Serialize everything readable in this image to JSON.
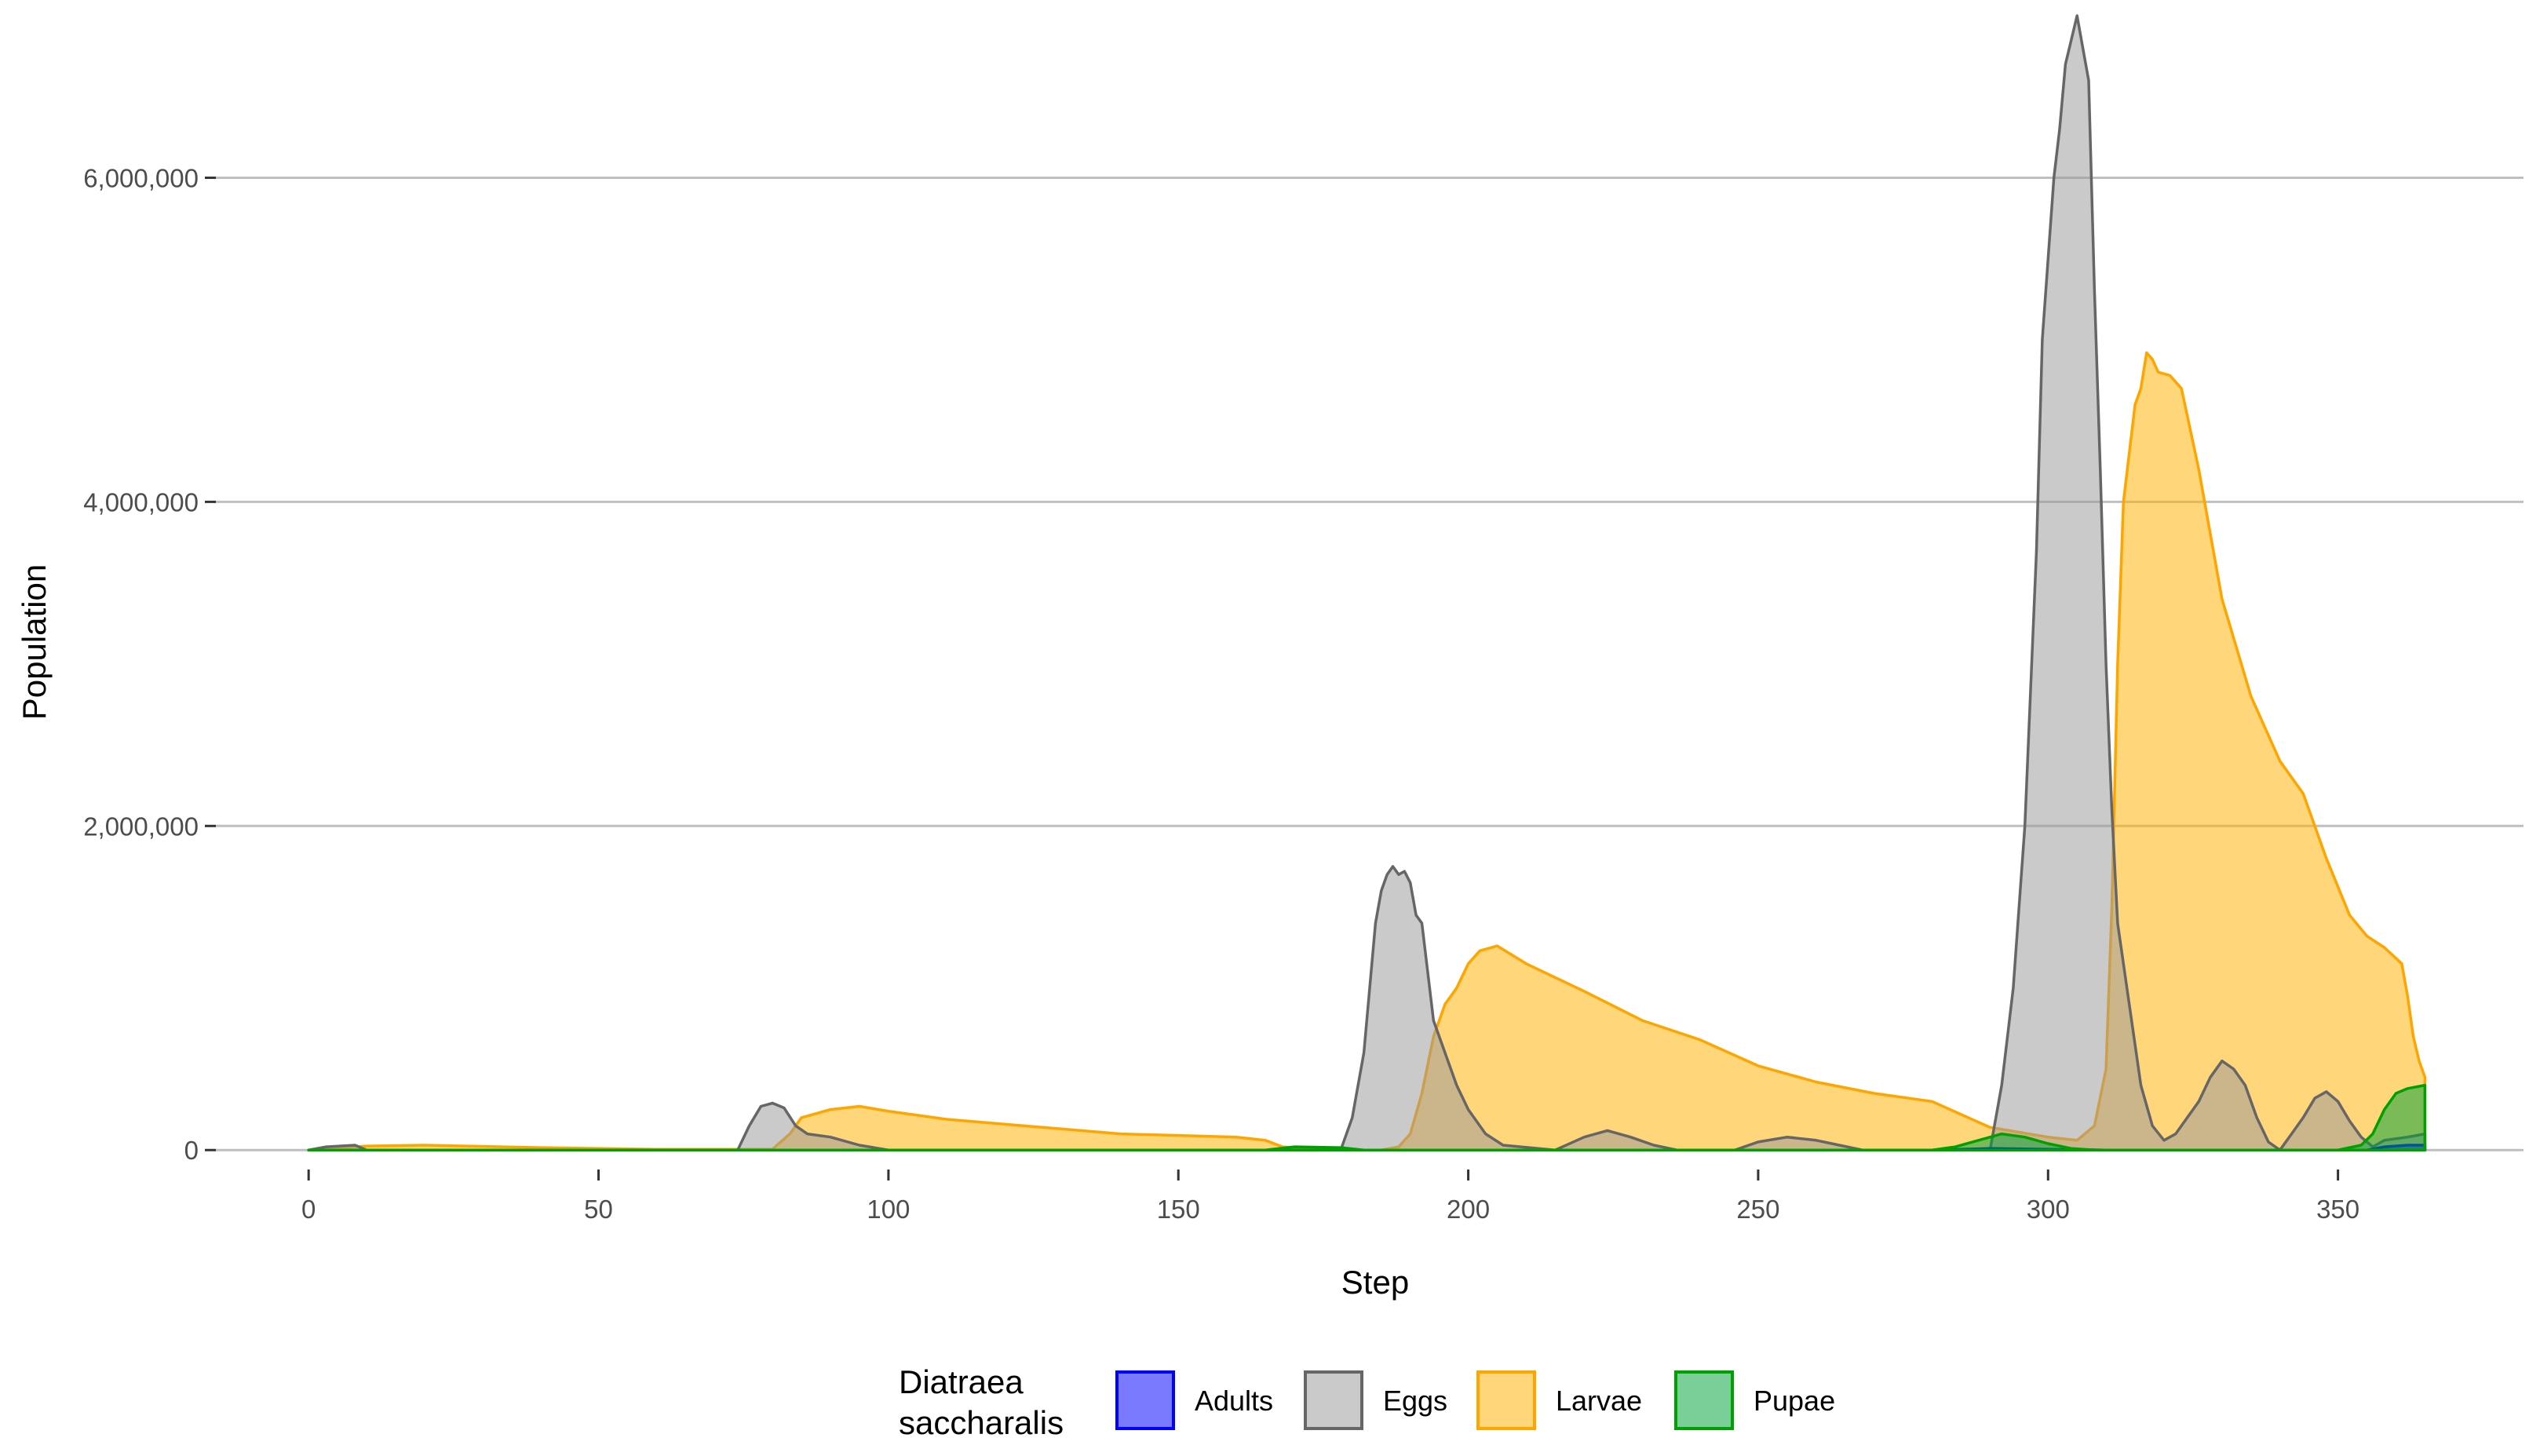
{
  "chart_data": {
    "type": "area",
    "title": "",
    "xlabel": "Step",
    "ylabel": "Population",
    "xlim": [
      -16,
      382
    ],
    "ylim": [
      -120000,
      7000000
    ],
    "x_ticks": [
      0,
      50,
      100,
      150,
      200,
      250,
      300,
      350
    ],
    "x_tick_labels": [
      "0",
      "50",
      "100",
      "150",
      "200",
      "250",
      "300",
      "350"
    ],
    "y_ticks": [
      0,
      2000000,
      4000000,
      6000000
    ],
    "y_tick_labels": [
      "0",
      "2,000,000",
      "4,000,000",
      "6,000,000"
    ],
    "grid": "horizontal major lines",
    "legend": {
      "title_lines": [
        "Diatraea",
        "saccharalis"
      ],
      "position": "bottom"
    },
    "series": [
      {
        "name": "Larvae",
        "fill": "#FFB000",
        "stroke": "#FFA500",
        "points": [
          [
            0,
            0
          ],
          [
            10,
            25000
          ],
          [
            20,
            30000
          ],
          [
            40,
            15000
          ],
          [
            60,
            5000
          ],
          [
            80,
            5000
          ],
          [
            83,
            100000
          ],
          [
            85,
            200000
          ],
          [
            90,
            250000
          ],
          [
            95,
            270000
          ],
          [
            100,
            240000
          ],
          [
            110,
            190000
          ],
          [
            120,
            160000
          ],
          [
            130,
            130000
          ],
          [
            140,
            100000
          ],
          [
            160,
            80000
          ],
          [
            165,
            60000
          ],
          [
            168,
            20000
          ],
          [
            175,
            0
          ],
          [
            185,
            0
          ],
          [
            188,
            20000
          ],
          [
            190,
            100000
          ],
          [
            192,
            350000
          ],
          [
            194,
            700000
          ],
          [
            196,
            900000
          ],
          [
            198,
            1000000
          ],
          [
            200,
            1150000
          ],
          [
            202,
            1230000
          ],
          [
            205,
            1260000
          ],
          [
            210,
            1150000
          ],
          [
            220,
            980000
          ],
          [
            230,
            800000
          ],
          [
            240,
            680000
          ],
          [
            250,
            520000
          ],
          [
            260,
            420000
          ],
          [
            270,
            350000
          ],
          [
            280,
            300000
          ],
          [
            290,
            140000
          ],
          [
            300,
            80000
          ],
          [
            305,
            60000
          ],
          [
            308,
            150000
          ],
          [
            310,
            500000
          ],
          [
            311,
            1500000
          ],
          [
            312,
            3000000
          ],
          [
            313,
            4000000
          ],
          [
            314,
            4300000
          ],
          [
            315,
            4600000
          ],
          [
            316,
            4700000
          ],
          [
            317,
            4920000
          ],
          [
            318,
            4880000
          ],
          [
            319,
            4800000
          ],
          [
            321,
            4780000
          ],
          [
            323,
            4700000
          ],
          [
            326,
            4200000
          ],
          [
            330,
            3400000
          ],
          [
            335,
            2800000
          ],
          [
            340,
            2400000
          ],
          [
            344,
            2200000
          ],
          [
            348,
            1800000
          ],
          [
            352,
            1450000
          ],
          [
            355,
            1320000
          ],
          [
            358,
            1250000
          ],
          [
            361,
            1150000
          ],
          [
            362,
            950000
          ],
          [
            363,
            700000
          ],
          [
            364,
            550000
          ],
          [
            365,
            450000
          ],
          [
            365,
            0
          ]
        ]
      },
      {
        "name": "Eggs",
        "fill": "#999999",
        "stroke": "#666666",
        "points": [
          [
            0,
            0
          ],
          [
            3,
            20000
          ],
          [
            8,
            30000
          ],
          [
            10,
            0
          ],
          [
            70,
            0
          ],
          [
            74,
            0
          ],
          [
            76,
            150000
          ],
          [
            78,
            270000
          ],
          [
            80,
            290000
          ],
          [
            82,
            260000
          ],
          [
            84,
            150000
          ],
          [
            86,
            100000
          ],
          [
            90,
            80000
          ],
          [
            95,
            30000
          ],
          [
            100,
            0
          ],
          [
            175,
            0
          ],
          [
            178,
            0
          ],
          [
            180,
            200000
          ],
          [
            182,
            600000
          ],
          [
            183,
            1000000
          ],
          [
            184,
            1400000
          ],
          [
            185,
            1600000
          ],
          [
            186,
            1700000
          ],
          [
            187,
            1750000
          ],
          [
            188,
            1700000
          ],
          [
            189,
            1720000
          ],
          [
            190,
            1650000
          ],
          [
            191,
            1450000
          ],
          [
            192,
            1400000
          ],
          [
            193,
            1100000
          ],
          [
            194,
            800000
          ],
          [
            196,
            600000
          ],
          [
            198,
            400000
          ],
          [
            200,
            250000
          ],
          [
            203,
            100000
          ],
          [
            206,
            30000
          ],
          [
            215,
            0
          ],
          [
            220,
            80000
          ],
          [
            224,
            120000
          ],
          [
            228,
            80000
          ],
          [
            232,
            30000
          ],
          [
            236,
            0
          ],
          [
            246,
            0
          ],
          [
            250,
            50000
          ],
          [
            255,
            80000
          ],
          [
            260,
            60000
          ],
          [
            264,
            30000
          ],
          [
            268,
            0
          ],
          [
            290,
            0
          ],
          [
            292,
            400000
          ],
          [
            294,
            1000000
          ],
          [
            296,
            2000000
          ],
          [
            298,
            3700000
          ],
          [
            299,
            5000000
          ],
          [
            300,
            5500000
          ],
          [
            301,
            6000000
          ],
          [
            302,
            6300000
          ],
          [
            303,
            6700000
          ],
          [
            304,
            6850000
          ],
          [
            305,
            7000000
          ],
          [
            306,
            6800000
          ],
          [
            307,
            6600000
          ],
          [
            308,
            5300000
          ],
          [
            309,
            4200000
          ],
          [
            310,
            3000000
          ],
          [
            311,
            2100000
          ],
          [
            312,
            1400000
          ],
          [
            314,
            900000
          ],
          [
            316,
            400000
          ],
          [
            318,
            150000
          ],
          [
            320,
            60000
          ],
          [
            322,
            100000
          ],
          [
            324,
            200000
          ],
          [
            326,
            300000
          ],
          [
            328,
            450000
          ],
          [
            330,
            550000
          ],
          [
            332,
            500000
          ],
          [
            334,
            400000
          ],
          [
            336,
            200000
          ],
          [
            338,
            50000
          ],
          [
            340,
            0
          ],
          [
            342,
            100000
          ],
          [
            344,
            200000
          ],
          [
            346,
            320000
          ],
          [
            348,
            360000
          ],
          [
            350,
            300000
          ],
          [
            352,
            180000
          ],
          [
            354,
            80000
          ],
          [
            356,
            20000
          ],
          [
            358,
            60000
          ],
          [
            362,
            80000
          ],
          [
            365,
            100000
          ],
          [
            365,
            0
          ]
        ]
      },
      {
        "name": "Adults",
        "fill": "#0000FF",
        "stroke": "#0000FF",
        "points": [
          [
            0,
            0
          ],
          [
            100,
            0
          ],
          [
            200,
            0
          ],
          [
            280,
            0
          ],
          [
            285,
            5000
          ],
          [
            290,
            10000
          ],
          [
            300,
            5000
          ],
          [
            310,
            0
          ],
          [
            355,
            0
          ],
          [
            358,
            20000
          ],
          [
            362,
            30000
          ],
          [
            365,
            30000
          ],
          [
            365,
            0
          ]
        ]
      },
      {
        "name": "Pupae",
        "fill": "#00A33A",
        "stroke": "#00A000",
        "points": [
          [
            0,
            0
          ],
          [
            100,
            0
          ],
          [
            165,
            0
          ],
          [
            170,
            20000
          ],
          [
            178,
            15000
          ],
          [
            182,
            0
          ],
          [
            280,
            0
          ],
          [
            284,
            20000
          ],
          [
            288,
            60000
          ],
          [
            292,
            100000
          ],
          [
            296,
            80000
          ],
          [
            300,
            40000
          ],
          [
            304,
            10000
          ],
          [
            308,
            0
          ],
          [
            350,
            0
          ],
          [
            354,
            30000
          ],
          [
            356,
            100000
          ],
          [
            358,
            250000
          ],
          [
            360,
            350000
          ],
          [
            362,
            380000
          ],
          [
            365,
            400000
          ],
          [
            365,
            0
          ]
        ]
      }
    ]
  }
}
